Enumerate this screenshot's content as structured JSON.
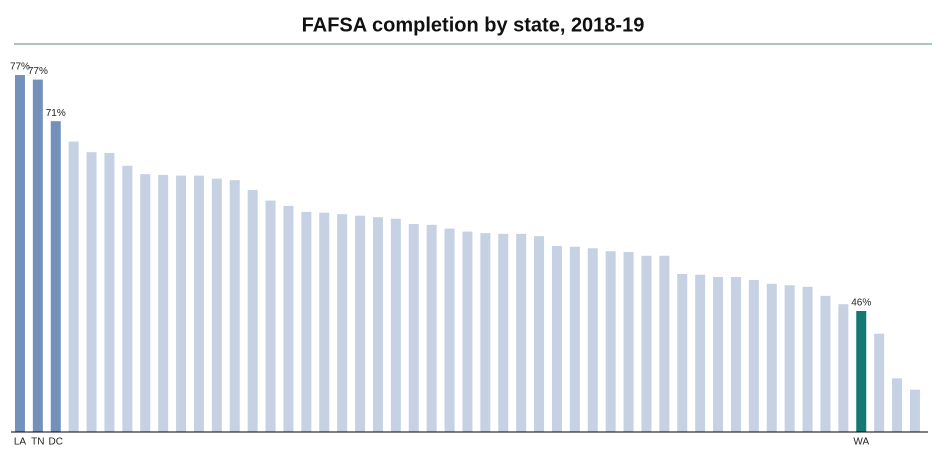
{
  "chart_data": {
    "type": "bar",
    "title": "FAFSA completion by state, 2018-19",
    "categories": [
      "LA",
      "TN",
      "DC",
      null,
      null,
      null,
      null,
      null,
      null,
      null,
      null,
      null,
      null,
      null,
      null,
      null,
      null,
      null,
      null,
      null,
      null,
      null,
      null,
      null,
      null,
      null,
      null,
      null,
      null,
      null,
      null,
      null,
      null,
      null,
      null,
      null,
      null,
      null,
      null,
      null,
      null,
      null,
      null,
      null,
      null,
      null,
      null,
      "WA",
      null,
      null,
      null
    ],
    "values": [
      77.2,
      76.6,
      71.1,
      68.4,
      67.0,
      66.9,
      65.2,
      64.1,
      64.0,
      63.9,
      63.9,
      63.5,
      63.3,
      62.0,
      60.6,
      59.9,
      59.1,
      59.0,
      58.8,
      58.6,
      58.4,
      58.2,
      57.5,
      57.4,
      56.9,
      56.5,
      56.3,
      56.2,
      56.2,
      55.9,
      54.6,
      54.5,
      54.3,
      53.9,
      53.8,
      53.3,
      53.3,
      50.9,
      50.8,
      50.5,
      50.5,
      50.1,
      49.6,
      49.4,
      49.2,
      48.0,
      46.9,
      46.0,
      43.0,
      37.1,
      35.6
    ],
    "value_labels": [
      "77%",
      "77%",
      "71%",
      null,
      null,
      null,
      null,
      null,
      null,
      null,
      null,
      null,
      null,
      null,
      null,
      null,
      null,
      null,
      null,
      null,
      null,
      null,
      null,
      null,
      null,
      null,
      null,
      null,
      null,
      null,
      null,
      null,
      null,
      null,
      null,
      null,
      null,
      null,
      null,
      null,
      null,
      null,
      null,
      null,
      null,
      null,
      null,
      "46%",
      null,
      null,
      null
    ],
    "colors": [
      "#7391bb",
      "#7391bb",
      "#7391bb",
      "#c6d1e3",
      "#c6d1e3",
      "#c6d1e3",
      "#c6d1e3",
      "#c6d1e3",
      "#c6d1e3",
      "#c6d1e3",
      "#c6d1e3",
      "#c6d1e3",
      "#c6d1e3",
      "#c6d1e3",
      "#c6d1e3",
      "#c6d1e3",
      "#c6d1e3",
      "#c6d1e3",
      "#c6d1e3",
      "#c6d1e3",
      "#c6d1e3",
      "#c6d1e3",
      "#c6d1e3",
      "#c6d1e3",
      "#c6d1e3",
      "#c6d1e3",
      "#c6d1e3",
      "#c6d1e3",
      "#c6d1e3",
      "#c6d1e3",
      "#c6d1e3",
      "#c6d1e3",
      "#c6d1e3",
      "#c6d1e3",
      "#c6d1e3",
      "#c6d1e3",
      "#c6d1e3",
      "#c6d1e3",
      "#c6d1e3",
      "#c6d1e3",
      "#c6d1e3",
      "#c6d1e3",
      "#c6d1e3",
      "#c6d1e3",
      "#c6d1e3",
      "#c6d1e3",
      "#c6d1e3",
      "#167872",
      "#c6d1e3",
      "#c6d1e3",
      "#c6d1e3"
    ],
    "ylim": [
      30,
      78
    ]
  }
}
